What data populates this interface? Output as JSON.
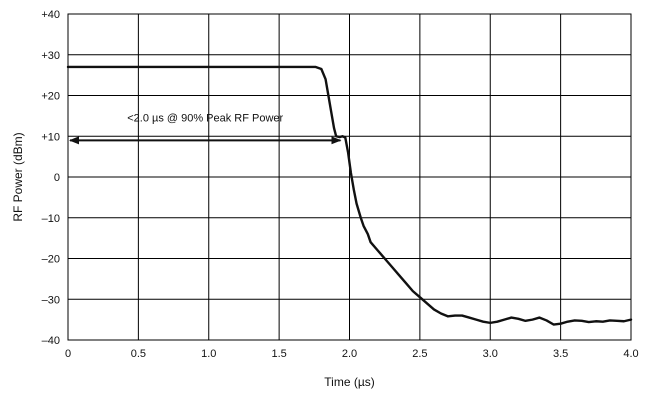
{
  "chart_data": {
    "type": "line",
    "title": "",
    "xlabel": "Time (µs)",
    "ylabel": "RF Power (dBm)",
    "xlim": [
      0,
      4.0
    ],
    "ylim": [
      -40,
      40
    ],
    "x_ticks": [
      0,
      0.5,
      1.0,
      1.5,
      2.0,
      2.5,
      3.0,
      3.5,
      4.0
    ],
    "x_tick_labels": [
      "0",
      "0.5",
      "1.0",
      "1.5",
      "2.0",
      "2.5",
      "3.0",
      "3.5",
      "4.0"
    ],
    "y_ticks": [
      40,
      30,
      20,
      10,
      0,
      -10,
      -20,
      -30,
      -40
    ],
    "y_tick_labels": [
      "+40",
      "+30",
      "+20",
      "+10",
      "0",
      "–10",
      "–20",
      "–30",
      "–40"
    ],
    "grid": true,
    "series": [
      {
        "color": "#111111",
        "x": [
          0,
          0.5,
          1.0,
          1.5,
          1.7,
          1.76,
          1.8,
          1.83,
          1.85,
          1.87,
          1.89,
          1.905,
          1.93,
          1.95,
          1.97,
          1.99,
          2.01,
          2.03,
          2.05,
          2.08,
          2.1,
          2.13,
          2.15,
          2.2,
          2.25,
          2.3,
          2.35,
          2.4,
          2.45,
          2.5,
          2.55,
          2.6,
          2.65,
          2.7,
          2.75,
          2.8,
          2.85,
          2.9,
          2.95,
          3.0,
          3.05,
          3.1,
          3.15,
          3.2,
          3.25,
          3.3,
          3.35,
          3.4,
          3.45,
          3.5,
          3.55,
          3.6,
          3.65,
          3.7,
          3.75,
          3.8,
          3.85,
          3.9,
          3.95,
          4.0
        ],
        "y": [
          27,
          27,
          27,
          27,
          27,
          27,
          26.5,
          24,
          20,
          16,
          12,
          10,
          9.8,
          10,
          9.7,
          6,
          1,
          -3,
          -6.5,
          -10,
          -12,
          -14,
          -16,
          -18,
          -20,
          -22,
          -24,
          -26,
          -28,
          -29.5,
          -31,
          -32.5,
          -33.5,
          -34.2,
          -34,
          -34,
          -34.5,
          -35,
          -35.5,
          -35.8,
          -35.5,
          -35,
          -34.5,
          -34.8,
          -35.3,
          -35,
          -34.5,
          -35.2,
          -36.2,
          -36,
          -35.5,
          -35.2,
          -35.3,
          -35.6,
          -35.4,
          -35.5,
          -35.2,
          -35.3,
          -35.4,
          -35
        ]
      }
    ],
    "annotation": {
      "text": "<2.0 µs @ 90% Peak RF Power",
      "from_x": 0,
      "to_x": 1.95,
      "y": 9
    }
  }
}
